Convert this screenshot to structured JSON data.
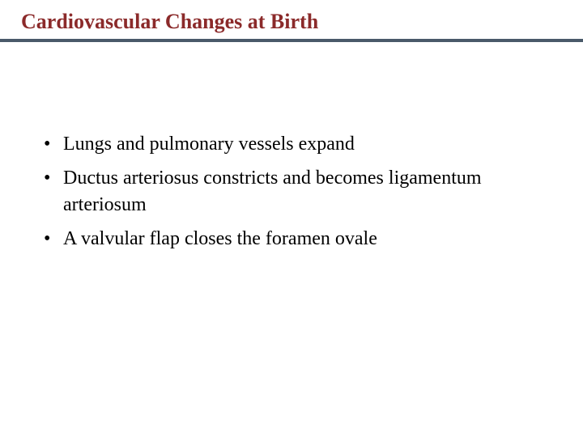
{
  "slide": {
    "title": "Cardiovascular Changes at Birth",
    "title_color": "#8b2a2a",
    "title_fontsize": 26,
    "title_fontweight": "bold",
    "divider_color": "#4a5a6a",
    "divider_height": 4,
    "background_color": "#ffffff",
    "body_color": "#000000",
    "body_fontsize": 24,
    "bullet_color": "#000000",
    "bullets": [
      "Lungs and pulmonary  vessels expand",
      "Ductus arteriosus constricts and becomes ligamentum arteriosum",
      "A valvular flap closes the foramen ovale"
    ]
  }
}
